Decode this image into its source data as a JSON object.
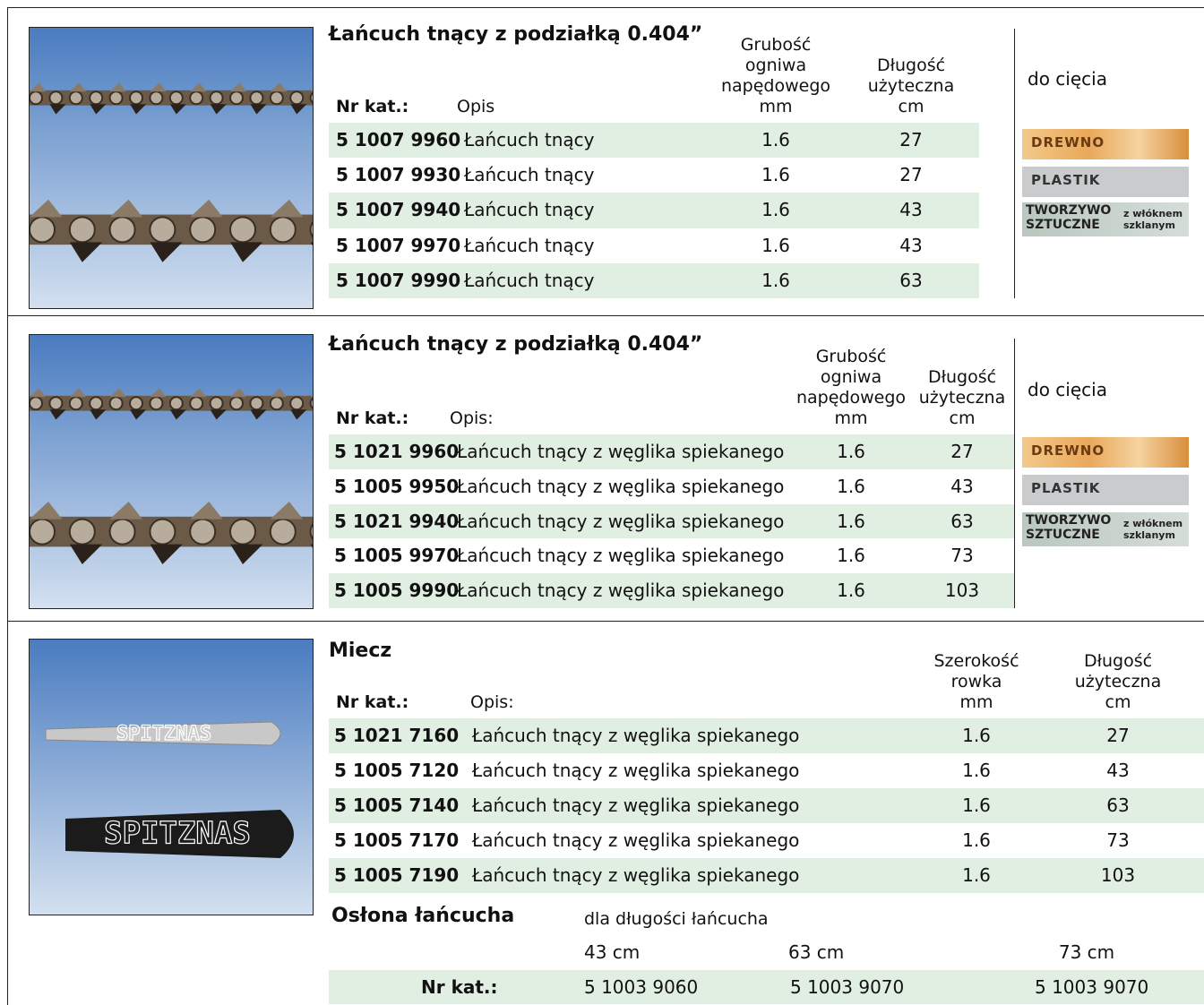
{
  "sections": [
    {
      "title": "Łańcuch tnący z podziałką 0.404”",
      "headers": {
        "number": "Nr kat.:",
        "description": "Opis",
        "col1": [
          "Grubość",
          "ogniwa",
          "napędowego",
          "mm"
        ],
        "col2": [
          "Długość",
          "użyteczna",
          "cm"
        ]
      },
      "rows": [
        [
          "5 1007 9960",
          "Łańcuch tnący",
          1.6,
          27
        ],
        [
          "5 1007 9930",
          "Łańcuch tnący",
          1.6,
          27
        ],
        [
          "5 1007 9940",
          "Łańcuch tnący",
          1.6,
          43
        ],
        [
          "5 1007 9970",
          "Łańcuch tnący",
          1.6,
          43
        ],
        [
          "5 1007 9990",
          "Łańcuch tnący",
          1.6,
          63
        ]
      ],
      "material": {
        "heading": "do cięcia",
        "wood": "DREWNO",
        "plastic": "PLASTIK",
        "composite": [
          "TWORZYWO",
          "SZTUCZNE"
        ],
        "fiber": [
          "z włóknem",
          "szklanym"
        ]
      }
    },
    {
      "title": "Łańcuch tnący z podziałką 0.404”",
      "headers": {
        "number": "Nr kat.:",
        "description": "Opis:",
        "col1": [
          "Grubość",
          "ogniwa",
          "napędowego",
          "mm"
        ],
        "col2": [
          "Długość",
          "użyteczna",
          "cm"
        ]
      },
      "rows": [
        [
          "5 1021 9960",
          "Łańcuch tnący z węglika spiekanego",
          1.6,
          27
        ],
        [
          "5 1005 9950",
          "Łańcuch tnący z węglika spiekanego",
          1.6,
          43
        ],
        [
          "5 1021 9940",
          "Łańcuch tnący z węglika spiekanego",
          1.6,
          63
        ],
        [
          "5 1005 9970",
          "Łańcuch tnący z węglika spiekanego",
          1.6,
          73
        ],
        [
          "5 1005 9990",
          "Łańcuch tnący z węglika spiekanego",
          1.6,
          103
        ]
      ],
      "material": {
        "heading": "do cięcia",
        "wood": "DREWNO",
        "plastic": "PLASTIK",
        "composite": [
          "TWORZYWO",
          "SZTUCZNE"
        ],
        "fiber": [
          "z włóknem",
          "szklanym"
        ]
      }
    },
    {
      "title": "Miecz",
      "headers": {
        "number": "Nr kat.:",
        "description": "Opis:",
        "col1": [
          "Szerokość",
          "rowka",
          "mm"
        ],
        "col2": [
          "Długość",
          "użyteczna",
          "cm"
        ]
      },
      "rows": [
        [
          "5 1021 7160",
          "Łańcuch tnący z węglika spiekanego",
          1.6,
          27
        ],
        [
          "5 1005 7120",
          "Łańcuch tnący z węglika spiekanego",
          1.6,
          43
        ],
        [
          "5 1005 7140",
          "Łańcuch tnący z węglika spiekanego",
          1.6,
          63
        ],
        [
          "5 1005 7170",
          "Łańcuch tnący z węglika spiekanego",
          1.6,
          73
        ],
        [
          "5 1005 7190",
          "Łańcuch tnący z węglika spiekanego",
          1.6,
          103
        ]
      ],
      "bar_logo": "SPITZNAS"
    }
  ],
  "chain_cover": {
    "title": "Osłona łańcucha",
    "subtitle": "dla długości łańcucha",
    "label": "Nr kat.:",
    "lengths": [
      "43 cm",
      "63 cm",
      "73 cm"
    ],
    "numbers": [
      "5 1003 9060",
      "5 1003 9070",
      "5 1003 9070"
    ]
  }
}
